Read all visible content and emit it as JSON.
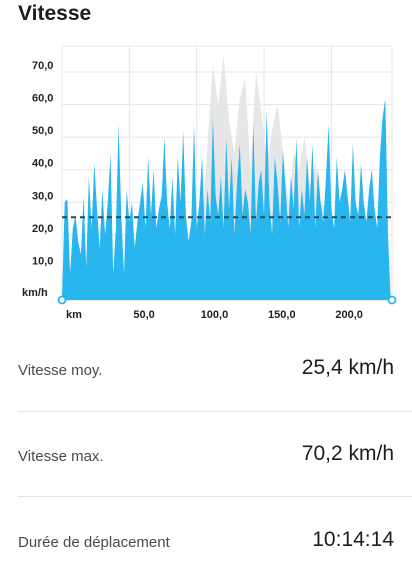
{
  "section": {
    "title": "Vitesse"
  },
  "chart_data": {
    "type": "area",
    "ylabel": "km/h",
    "xlabel": "km",
    "x_ticks": [
      50,
      100,
      150,
      200
    ],
    "x_tick_labels": [
      "50,0",
      "100,0",
      "150,0",
      "200,0"
    ],
    "y_ticks": [
      10,
      20,
      30,
      40,
      50,
      60,
      70
    ],
    "y_tick_labels": [
      "10,0",
      "20,0",
      "30,0",
      "40,0",
      "50,0",
      "60,0",
      "70,0"
    ],
    "xlim": [
      0,
      245
    ],
    "ylim": [
      0,
      78
    ],
    "average_line": 25.4,
    "colors": {
      "speed": "#29b6ef",
      "elevation": "#e6e6e6",
      "average": "#1f4a5c",
      "grid": "#e5e5e5"
    },
    "series": [
      {
        "x": [
          0,
          2,
          4,
          6,
          8,
          10,
          12,
          14,
          16,
          18,
          20,
          22,
          24,
          26,
          28,
          30,
          32,
          34,
          36,
          38,
          40,
          42,
          44,
          46,
          48,
          50,
          52,
          54,
          56,
          58,
          60,
          62,
          64,
          66,
          68,
          70,
          72,
          74,
          76,
          78,
          80,
          82,
          84,
          86,
          88,
          90,
          92,
          94,
          96,
          98,
          100,
          102,
          104,
          106,
          108,
          110,
          112,
          114,
          116,
          118,
          120,
          122,
          124,
          126,
          128,
          130,
          132,
          134,
          136,
          138,
          140,
          142,
          144,
          146,
          148,
          150,
          152,
          154,
          156,
          158,
          160,
          162,
          164,
          166,
          168,
          170,
          172,
          174,
          176,
          178,
          180,
          182,
          184,
          186,
          188,
          190,
          192,
          194,
          196,
          198,
          200,
          202,
          204,
          206,
          208,
          210,
          212,
          214,
          216,
          218,
          220,
          222,
          224,
          226,
          228,
          230,
          232,
          234,
          236,
          238,
          240,
          242,
          244
        ],
        "values": [
          0,
          30,
          31,
          8,
          22,
          26,
          18,
          14,
          32,
          10,
          38,
          22,
          42,
          28,
          16,
          34,
          20,
          30,
          45,
          8,
          22,
          54,
          26,
          8,
          34,
          24,
          30,
          16,
          24,
          30,
          36,
          22,
          44,
          26,
          40,
          22,
          28,
          32,
          50,
          30,
          22,
          38,
          20,
          44,
          30,
          52,
          26,
          18,
          24,
          54,
          22,
          30,
          44,
          20,
          34,
          24,
          56,
          32,
          26,
          38,
          22,
          50,
          28,
          44,
          20,
          36,
          48,
          26,
          34,
          30,
          20,
          54,
          24,
          36,
          40,
          26,
          58,
          30,
          20,
          44,
          36,
          24,
          46,
          34,
          22,
          38,
          28,
          50,
          22,
          34,
          26,
          44,
          30,
          48,
          22,
          40,
          30,
          24,
          38,
          54,
          28,
          22,
          44,
          30,
          34,
          40,
          32,
          24,
          48,
          30,
          26,
          42,
          30,
          24,
          34,
          40,
          28,
          22,
          44,
          56,
          62,
          20,
          0
        ]
      }
    ],
    "background_series": [
      {
        "x": [
          0,
          10,
          20,
          30,
          40,
          50,
          60,
          70,
          80,
          90,
          100,
          104,
          108,
          112,
          116,
          120,
          124,
          128,
          132,
          136,
          140,
          144,
          148,
          152,
          156,
          160,
          164,
          168,
          172,
          176,
          180,
          184,
          188,
          192,
          196,
          200,
          204,
          208,
          212,
          216,
          220,
          224,
          228,
          232,
          236,
          240,
          244
        ],
        "values": [
          2,
          3,
          4,
          4,
          5,
          5,
          6,
          6,
          7,
          8,
          10,
          22,
          48,
          72,
          60,
          75,
          55,
          45,
          62,
          68,
          40,
          70,
          58,
          42,
          52,
          60,
          46,
          30,
          45,
          40,
          50,
          35,
          42,
          30,
          28,
          25,
          20,
          16,
          12,
          10,
          8,
          6,
          5,
          4,
          4,
          3,
          2
        ]
      }
    ]
  },
  "stats": [
    {
      "label": "Vitesse moy.",
      "value": "25,4 km/h"
    },
    {
      "label": "Vitesse max.",
      "value": "70,2 km/h"
    },
    {
      "label": "Durée de déplacement",
      "value": "10:14:14"
    }
  ]
}
